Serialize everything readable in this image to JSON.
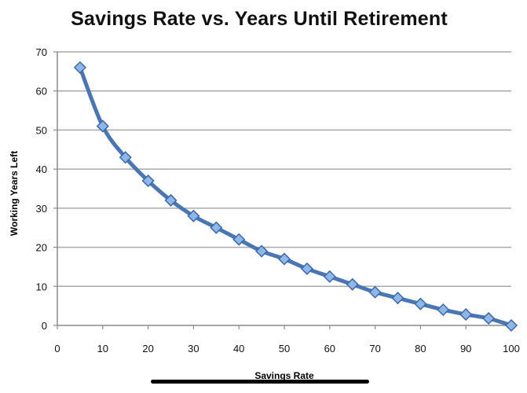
{
  "colors": {
    "series_line": "#4a77b4",
    "marker_fill": "#8fb6e8",
    "marker_stroke": "#3c6aa8",
    "gridline": "#a9a9a9",
    "axis": "#8a8a8a",
    "text": "#111111"
  },
  "chart_data": {
    "type": "line",
    "title": "Savings Rate vs. Years Until Retirement",
    "xlabel": "Savings Rate",
    "ylabel": "Working Years Left",
    "xlim": [
      0,
      100
    ],
    "ylim": [
      0,
      70
    ],
    "xticks": [
      0,
      10,
      20,
      30,
      40,
      50,
      60,
      70,
      80,
      90,
      100
    ],
    "yticks": [
      0,
      10,
      20,
      30,
      40,
      50,
      60,
      70
    ],
    "grid": {
      "horizontal": true,
      "vertical": false
    },
    "legend": "none",
    "series": [
      {
        "x": [
          5,
          10,
          15,
          20,
          25,
          30,
          35,
          40,
          45,
          50,
          55,
          60,
          65,
          70,
          75,
          80,
          85,
          90,
          95,
          100
        ],
        "y": [
          66,
          51,
          43,
          37,
          32,
          28,
          25,
          22,
          19,
          17,
          14.5,
          12.5,
          10.5,
          8.5,
          7,
          5.5,
          4,
          2.8,
          1.8,
          0
        ],
        "marker": "diamond",
        "line": "smooth"
      }
    ]
  }
}
